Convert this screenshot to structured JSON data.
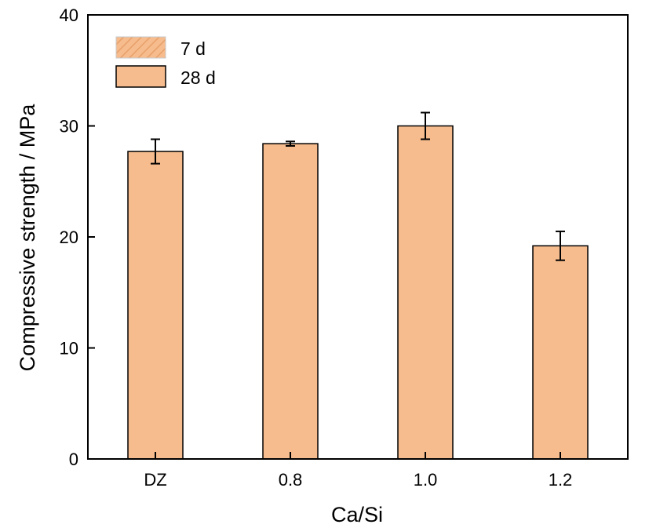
{
  "chart_data": {
    "type": "bar",
    "title": "",
    "xlabel": "Ca/Si",
    "ylabel": "Compressive strength / MPa",
    "categories": [
      "DZ",
      "0.8",
      "1.0",
      "1.2"
    ],
    "ylim": [
      0,
      40
    ],
    "yticks": [
      0,
      10,
      20,
      30,
      40
    ],
    "grid": false,
    "legend_position": "top-left",
    "legend": [
      {
        "label": "7 d",
        "style": "hatched",
        "color": "#f6bc8d"
      },
      {
        "label": "28 d",
        "style": "solid",
        "color": "#f6bc8d"
      }
    ],
    "series": [
      {
        "name": "28 d",
        "color": "#f6bc8d",
        "values": [
          27.7,
          28.4,
          30.0,
          19.2
        ],
        "errors": [
          1.1,
          0.2,
          1.2,
          1.3
        ]
      }
    ]
  }
}
